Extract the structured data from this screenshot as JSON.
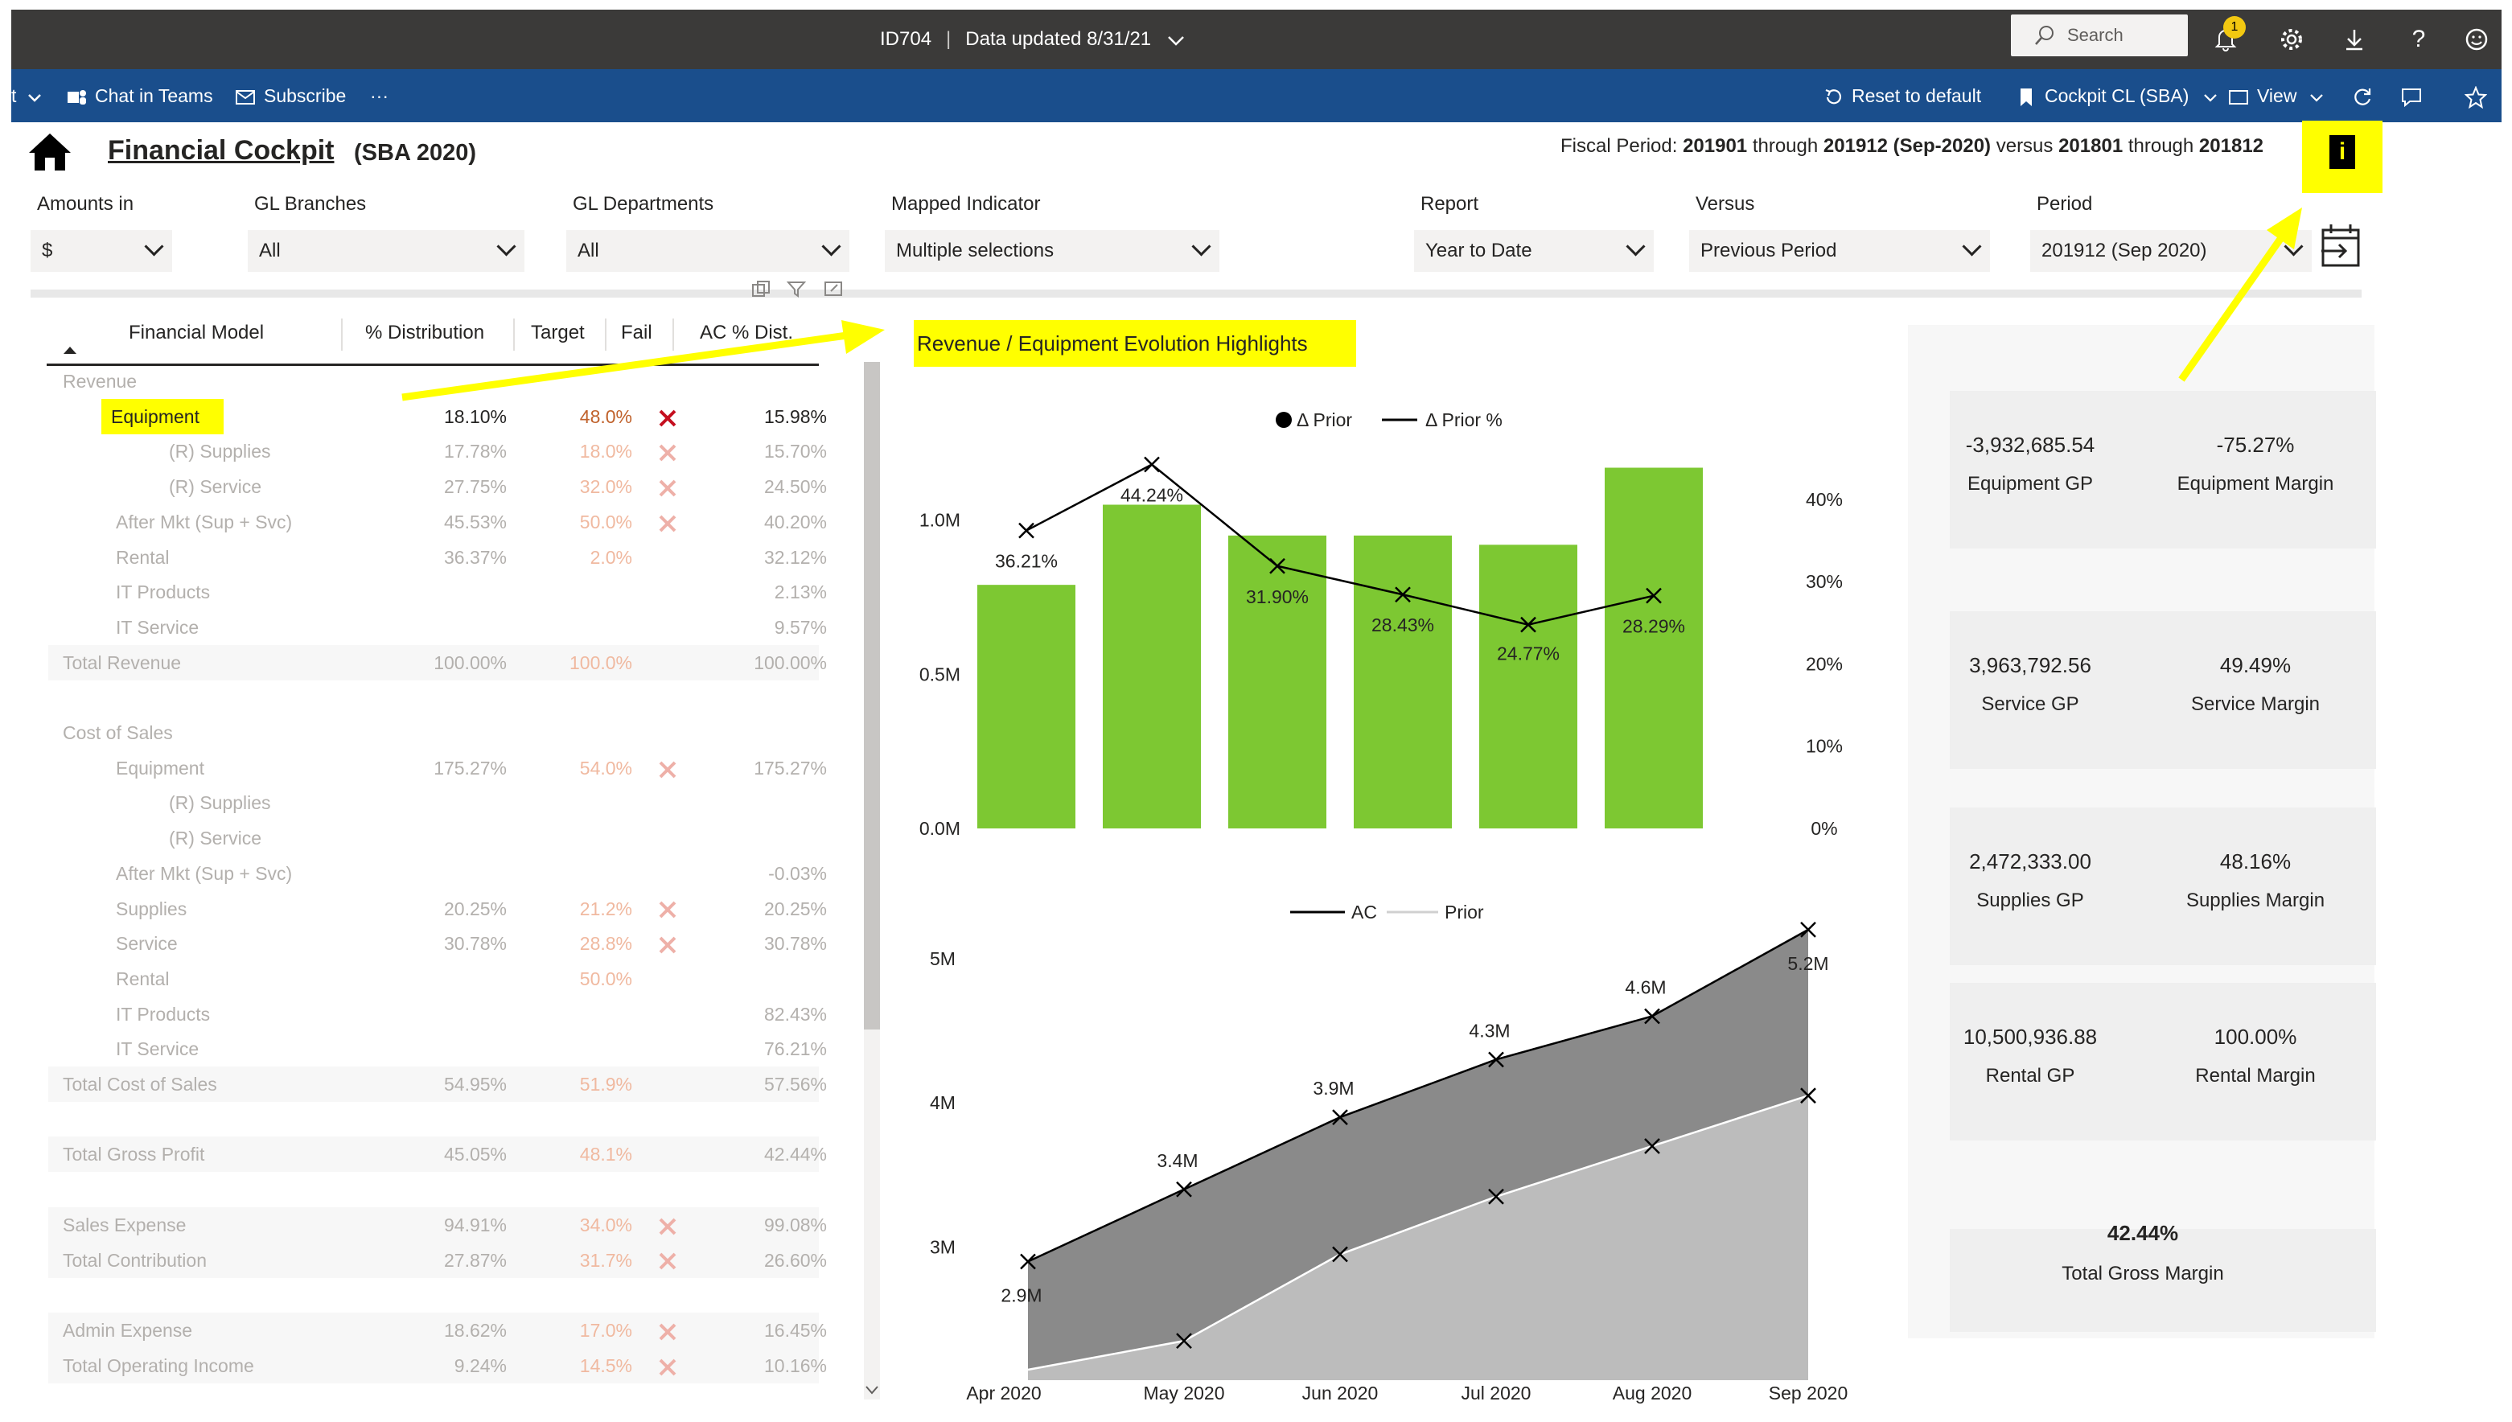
{
  "topbar": {
    "report_id": "ID704",
    "data_updated": "Data updated 8/31/21",
    "search_placeholder": "Search",
    "notifications_count": "1"
  },
  "actionbar": {
    "chat_in_teams": "Chat in Teams",
    "subscribe": "Subscribe",
    "more": "···",
    "reset_to_default": "Reset to default",
    "bookmark": "Cockpit CL (SBA)",
    "view": "View"
  },
  "header": {
    "title": "Financial Cockpit",
    "subtitle": "(SBA 2020)",
    "fiscal_prefix": "Fiscal Period:",
    "fiscal_from": "201901",
    "through1": "through",
    "fiscal_to": "201912 (Sep-2020)",
    "versus": "versus",
    "compare_from": "201801",
    "through2": "through",
    "compare_to": "201812"
  },
  "slicers": [
    {
      "label": "Amounts in",
      "value": "$"
    },
    {
      "label": "GL Branches",
      "value": "All"
    },
    {
      "label": "GL Departments",
      "value": "All"
    },
    {
      "label": "Mapped Indicator",
      "value": "Multiple selections"
    },
    {
      "label": "Report",
      "value": "Year to Date"
    },
    {
      "label": "Versus",
      "value": "Previous Period"
    },
    {
      "label": "Period",
      "value": "201912 (Sep 2020)"
    }
  ],
  "table": {
    "headers": {
      "model": "Financial Model",
      "dist": "% Distribution",
      "target": "Target",
      "fail": "Fail",
      "ac": "AC % Dist."
    },
    "rows": [
      {
        "label": "Revenue",
        "indent": 0,
        "dist": "",
        "target": "",
        "fail": false,
        "ac": "",
        "dim": true
      },
      {
        "label": "Equipment",
        "indent": 1,
        "dist": "18.10%",
        "target": "48.0%",
        "fail": true,
        "ac": "15.98%",
        "dim": false,
        "highlight": true
      },
      {
        "label": "(R) Supplies",
        "indent": 2,
        "dist": "17.78%",
        "target": "18.0%",
        "fail": true,
        "ac": "15.70%",
        "dim": true
      },
      {
        "label": "(R) Service",
        "indent": 2,
        "dist": "27.75%",
        "target": "32.0%",
        "fail": true,
        "ac": "24.50%",
        "dim": true
      },
      {
        "label": "After Mkt (Sup + Svc)",
        "indent": 1,
        "dist": "45.53%",
        "target": "50.0%",
        "fail": true,
        "ac": "40.20%",
        "dim": true
      },
      {
        "label": "Rental",
        "indent": 1,
        "dist": "36.37%",
        "target": "2.0%",
        "fail": false,
        "ac": "32.12%",
        "dim": true
      },
      {
        "label": "IT Products",
        "indent": 1,
        "dist": "",
        "target": "",
        "fail": false,
        "ac": "2.13%",
        "dim": true
      },
      {
        "label": "IT Service",
        "indent": 1,
        "dist": "",
        "target": "",
        "fail": false,
        "ac": "9.57%",
        "dim": true
      },
      {
        "label": "Total Revenue",
        "indent": 0,
        "dist": "100.00%",
        "target": "100.0%",
        "fail": false,
        "ac": "100.00%",
        "dim": true,
        "total": true
      },
      {
        "label": "",
        "indent": 0,
        "dist": "",
        "target": "",
        "fail": false,
        "ac": "",
        "dim": true
      },
      {
        "label": "Cost of Sales",
        "indent": 0,
        "dist": "",
        "target": "",
        "fail": false,
        "ac": "",
        "dim": true
      },
      {
        "label": "Equipment",
        "indent": 1,
        "dist": "175.27%",
        "target": "54.0%",
        "fail": true,
        "ac": "175.27%",
        "dim": true
      },
      {
        "label": "(R) Supplies",
        "indent": 2,
        "dist": "",
        "target": "",
        "fail": false,
        "ac": "",
        "dim": true
      },
      {
        "label": "(R) Service",
        "indent": 2,
        "dist": "",
        "target": "",
        "fail": false,
        "ac": "",
        "dim": true
      },
      {
        "label": "After Mkt (Sup + Svc)",
        "indent": 1,
        "dist": "",
        "target": "",
        "fail": false,
        "ac": "-0.03%",
        "dim": true
      },
      {
        "label": "Supplies",
        "indent": 1,
        "dist": "20.25%",
        "target": "21.2%",
        "fail": true,
        "ac": "20.25%",
        "dim": true
      },
      {
        "label": "Service",
        "indent": 1,
        "dist": "30.78%",
        "target": "28.8%",
        "fail": true,
        "ac": "30.78%",
        "dim": true
      },
      {
        "label": "Rental",
        "indent": 1,
        "dist": "",
        "target": "50.0%",
        "fail": false,
        "ac": "",
        "dim": true
      },
      {
        "label": "IT Products",
        "indent": 1,
        "dist": "",
        "target": "",
        "fail": false,
        "ac": "82.43%",
        "dim": true
      },
      {
        "label": "IT Service",
        "indent": 1,
        "dist": "",
        "target": "",
        "fail": false,
        "ac": "76.21%",
        "dim": true
      },
      {
        "label": "Total Cost of Sales",
        "indent": 0,
        "dist": "54.95%",
        "target": "51.9%",
        "fail": false,
        "ac": "57.56%",
        "dim": true,
        "total": true
      },
      {
        "label": "",
        "indent": 0,
        "dist": "",
        "target": "",
        "fail": false,
        "ac": "",
        "dim": true
      },
      {
        "label": "Total Gross Profit",
        "indent": 0,
        "dist": "45.05%",
        "target": "48.1%",
        "fail": false,
        "ac": "42.44%",
        "dim": true,
        "total": true
      },
      {
        "label": "",
        "indent": 0,
        "dist": "",
        "target": "",
        "fail": false,
        "ac": "",
        "dim": true
      },
      {
        "label": "Sales Expense",
        "indent": 0,
        "dist": "94.91%",
        "target": "34.0%",
        "fail": true,
        "ac": "99.08%",
        "dim": true,
        "total": true
      },
      {
        "label": "Total Contribution",
        "indent": 0,
        "dist": "27.87%",
        "target": "31.7%",
        "fail": true,
        "ac": "26.60%",
        "dim": true,
        "total": true
      },
      {
        "label": "",
        "indent": 0,
        "dist": "",
        "target": "",
        "fail": false,
        "ac": "",
        "dim": true
      },
      {
        "label": "Admin Expense",
        "indent": 0,
        "dist": "18.62%",
        "target": "17.0%",
        "fail": true,
        "ac": "16.45%",
        "dim": true,
        "total": true
      },
      {
        "label": "Total Operating Income",
        "indent": 0,
        "dist": "9.24%",
        "target": "14.5%",
        "fail": true,
        "ac": "10.16%",
        "dim": true,
        "total": true
      }
    ]
  },
  "highlight_title": "Revenue / Equipment Evolution Highlights",
  "chart_data": [
    {
      "type": "bar",
      "categories": [
        "Apr 2020",
        "May 2020",
        "Jun 2020",
        "Jul 2020",
        "Aug 2020",
        "Sep 2020"
      ],
      "series": [
        {
          "name": "Δ Prior",
          "values": [
            0.79,
            1.05,
            0.95,
            0.95,
            0.92,
            1.17
          ]
        },
        {
          "name": "Δ Prior %",
          "values": [
            36.21,
            44.24,
            31.9,
            28.43,
            24.77,
            28.29
          ],
          "labels": [
            "36.21%",
            "44.24%",
            "31.90%",
            "28.43%",
            "24.77%",
            "28.29%"
          ]
        }
      ],
      "y_left_ticks": [
        "0.0M",
        "0.5M",
        "1.0M"
      ],
      "y_left_range": [
        0,
        1.2
      ],
      "y_right_ticks": [
        "0%",
        "10%",
        "20%",
        "30%",
        "40%"
      ],
      "y_right_range": [
        0,
        44
      ],
      "bar_color": "#7dc832",
      "legend_position": "top"
    },
    {
      "type": "area",
      "categories": [
        "Apr 2020",
        "May 2020",
        "Jun 2020",
        "Jul 2020",
        "Aug 2020",
        "Sep 2020"
      ],
      "series": [
        {
          "name": "AC",
          "values": [
            2.9,
            3.4,
            3.9,
            4.3,
            4.6,
            5.2
          ],
          "labels": [
            "2.9M",
            "3.4M",
            "3.9M",
            "4.3M",
            "4.6M",
            "5.2M"
          ]
        },
        {
          "name": "Prior",
          "values": [
            2.15,
            2.35,
            2.95,
            3.35,
            3.7,
            4.05
          ]
        }
      ],
      "y_ticks": [
        "3M",
        "4M",
        "5M"
      ],
      "y_range": [
        2.1,
        5.4
      ],
      "legend_position": "top"
    }
  ],
  "kpis": [
    {
      "value": "-3,932,685.54",
      "label": "Equipment GP"
    },
    {
      "value": "-75.27%",
      "label": "Equipment Margin"
    },
    {
      "value": "3,963,792.56",
      "label": "Service GP"
    },
    {
      "value": "49.49%",
      "label": "Service Margin"
    },
    {
      "value": "2,472,333.00",
      "label": "Supplies GP"
    },
    {
      "value": "48.16%",
      "label": "Supplies Margin"
    },
    {
      "value": "10,500,936.88",
      "label": "Rental GP"
    },
    {
      "value": "100.00%",
      "label": "Rental Margin"
    }
  ],
  "total_kpi": {
    "value": "42.44%",
    "label": "Total Gross Margin"
  },
  "colors": {
    "highlight": "#ffff00",
    "fail": "#d83b01",
    "bar": "#7dc832",
    "ac_area": "#8a8a8a",
    "prior_area": "#bcbcbc"
  }
}
